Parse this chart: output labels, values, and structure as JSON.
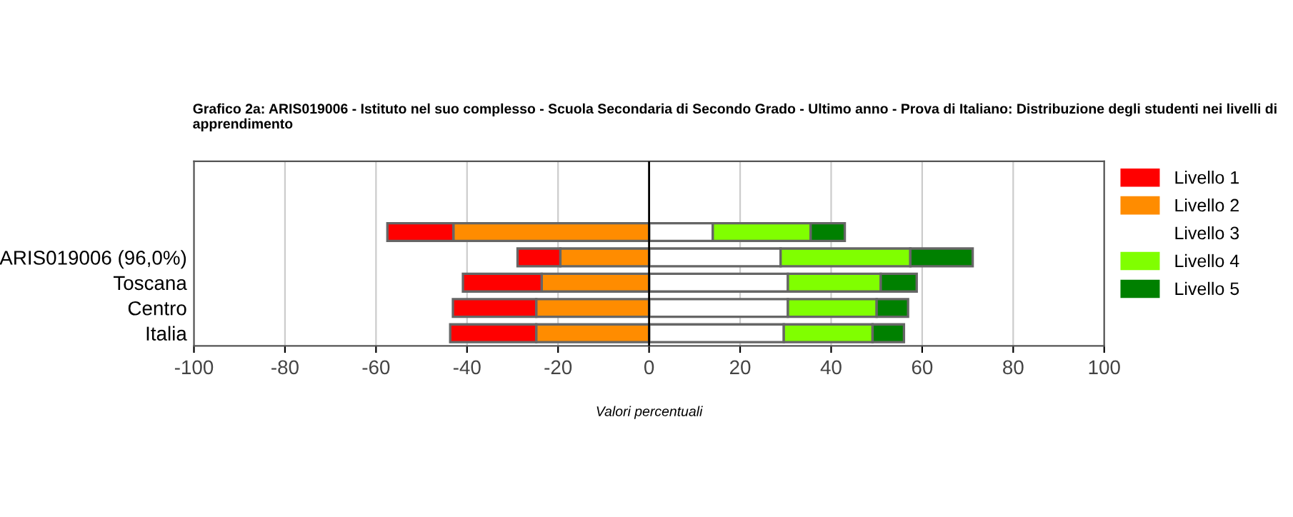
{
  "chart_data": {
    "type": "bar",
    "orientation": "horizontal",
    "stacked": true,
    "title": "Grafico 2a: ARIS019006 - Istituto nel suo complesso - Scuola Secondaria di Secondo Grado - Ultimo anno - Prova di Italiano: Distribuzione degli studenti nei livelli di apprendimento",
    "xlabel": "Valori percentuali",
    "categories": [
      null,
      "ARIS019006 (96,0%)",
      "Toscana",
      "Centro",
      "Italia"
    ],
    "series": [
      {
        "name": "Livello 1",
        "color": "#ff0000",
        "values": [
          -14.5,
          -9.4,
          -17.3,
          -18.3,
          -18.9
        ]
      },
      {
        "name": "Livello 2",
        "color": "#ff8c00",
        "values": [
          -43,
          -19.5,
          -23.6,
          -24.8,
          -24.8
        ]
      },
      {
        "name": "Livello 3",
        "color": "#ffffff",
        "values": [
          14,
          28.9,
          30.5,
          30.5,
          29.6
        ]
      },
      {
        "name": "Livello 4",
        "color": "#80ff00",
        "values": [
          21.5,
          28.5,
          20.4,
          19.5,
          19.5
        ]
      },
      {
        "name": "Livello 5",
        "color": "#008000",
        "values": [
          7.5,
          13.7,
          7.9,
          6.9,
          6.9
        ]
      }
    ],
    "xlim": [
      -100,
      100
    ],
    "xticks": [
      -100,
      -80,
      -60,
      -40,
      -20,
      0,
      20,
      40,
      60,
      80,
      100
    ],
    "ref_lines": [
      {
        "axis": "x",
        "value": 0,
        "color": "#000000"
      }
    ],
    "grid": "x",
    "legend": "top right"
  }
}
